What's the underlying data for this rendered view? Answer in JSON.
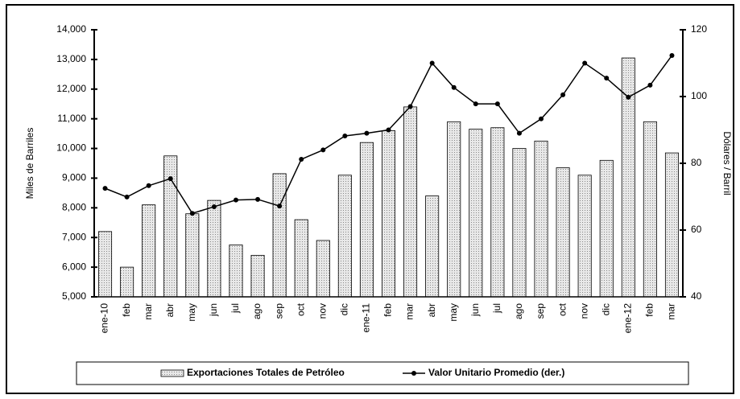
{
  "chart_data": {
    "type": "bar-line",
    "categories": [
      "ene-10",
      "feb",
      "mar",
      "abr",
      "may",
      "jun",
      "jul",
      "ago",
      "sep",
      "oct",
      "nov",
      "dic",
      "ene-11",
      "feb",
      "mar",
      "abr",
      "may",
      "jun",
      "jul",
      "ago",
      "sep",
      "oct",
      "nov",
      "dic",
      "ene-12",
      "feb",
      "mar"
    ],
    "y_label": "Miles de Barriles",
    "y2_label": "Dólares / Barril",
    "ylim": [
      5000,
      14000
    ],
    "yticks": [
      {
        "value": 5000,
        "label": "5,000"
      },
      {
        "value": 6000,
        "label": "6,000"
      },
      {
        "value": 7000,
        "label": "7,000"
      },
      {
        "value": 8000,
        "label": "8,000"
      },
      {
        "value": 9000,
        "label": "9,000"
      },
      {
        "value": 10000,
        "label": "10,000"
      },
      {
        "value": 11000,
        "label": "11,000"
      },
      {
        "value": 12000,
        "label": "12,000"
      },
      {
        "value": 13000,
        "label": "13,000"
      },
      {
        "value": 14000,
        "label": "14,000"
      }
    ],
    "y2lim": [
      40,
      120
    ],
    "y2ticks": [
      40,
      60,
      80,
      100,
      120
    ],
    "grid": false,
    "legend": "bottom",
    "series": [
      {
        "name": "Exportaciones Totales de Petróleo",
        "type": "bar",
        "color": "#d4d4d4",
        "values": [
          7200,
          6000,
          8100,
          9750,
          7800,
          8250,
          6750,
          6400,
          9150,
          7600,
          6900,
          9100,
          10200,
          10600,
          11400,
          8400,
          10900,
          10650,
          10700,
          10000,
          10250,
          9350,
          9100,
          9600,
          13050,
          10900,
          9850
        ]
      },
      {
        "name": "Valor Unitario Promedio (der.)",
        "type": "line",
        "axis": "y2",
        "color": "#000000",
        "values": [
          72.5,
          69.9,
          73.3,
          75.4,
          65,
          67,
          69,
          69.2,
          67.2,
          81.2,
          84,
          88.2,
          89,
          90,
          97,
          110,
          102.7,
          97.8,
          97.8,
          89,
          93.3,
          100.5,
          110,
          105.5,
          99.8,
          103.4,
          112.3
        ]
      }
    ]
  }
}
